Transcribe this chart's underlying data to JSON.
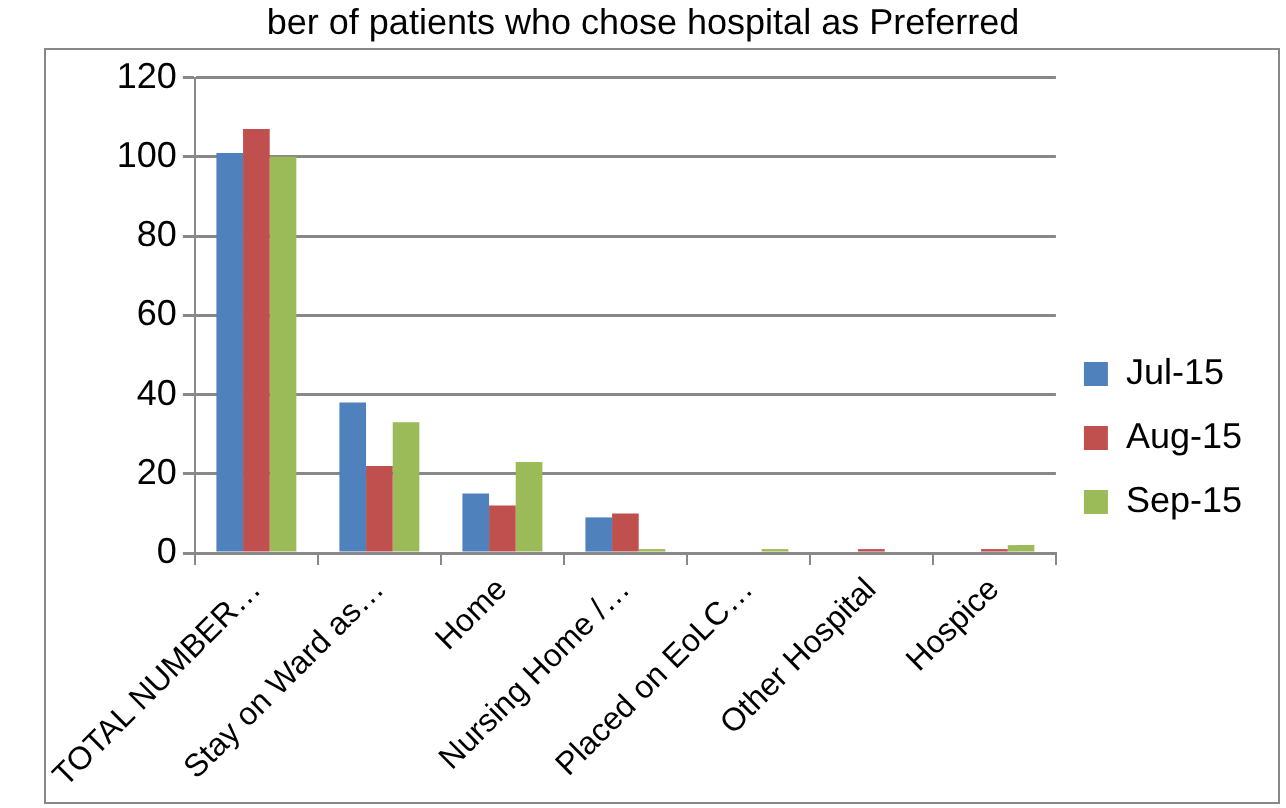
{
  "chart_data": {
    "type": "bar",
    "title": "ber of patients who chose hospital as Preferred",
    "categories": [
      "TOTAL NUMBER…",
      "Stay on Ward as…",
      "Home",
      "Nursing Home /…",
      "Placed on EoLC…",
      "Other Hospital",
      "Hospice"
    ],
    "series": [
      {
        "name": "Jul-15",
        "color": "#4f81bd",
        "values": [
          101,
          38,
          15,
          9,
          0,
          0,
          0
        ]
      },
      {
        "name": "Aug-15",
        "color": "#c0504d",
        "values": [
          107,
          22,
          12,
          10,
          0,
          1,
          1
        ]
      },
      {
        "name": "Sep-15",
        "color": "#9bbb59",
        "values": [
          100,
          33,
          23,
          1,
          1,
          0,
          2
        ]
      }
    ],
    "ylim": [
      0,
      120
    ],
    "yticks": [
      0,
      20,
      40,
      60,
      80,
      100,
      120
    ],
    "grid": "y",
    "legend": "right"
  }
}
